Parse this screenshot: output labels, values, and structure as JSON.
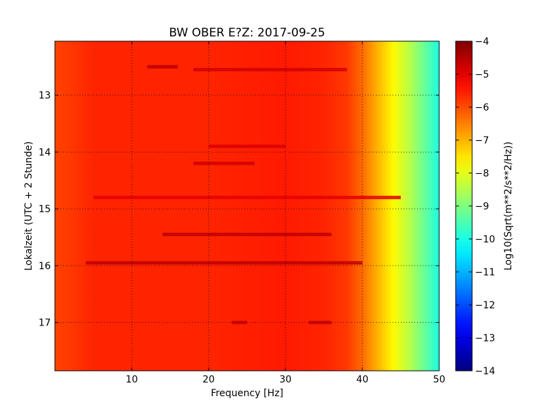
{
  "chart_data": {
    "type": "heatmap",
    "title": "BW OBER E?Z: 2017-09-25",
    "xlabel": "Frequency [Hz]",
    "ylabel": "Lokalzeit (UTC + 2 Stunde)",
    "colorbar_label": "Log10(Sqrt(m**2/s**2/Hz))",
    "colormap": "jet",
    "grid": true,
    "x_range": [
      0,
      50
    ],
    "y_range": [
      12.05,
      17.85
    ],
    "y_inverted": true,
    "x_ticks": [
      10,
      20,
      30,
      40,
      50
    ],
    "x_tick_labels": [
      "10",
      "20",
      "30",
      "40",
      "50"
    ],
    "y_ticks": [
      13,
      14,
      15,
      16,
      17
    ],
    "y_tick_labels": [
      "13",
      "14",
      "15",
      "16",
      "17"
    ],
    "color_range": [
      -14,
      -4
    ],
    "colorbar_ticks": [
      -4,
      -5,
      -6,
      -7,
      -8,
      -9,
      -10,
      -11,
      -12,
      -13,
      -14
    ],
    "colorbar_tick_labels": [
      "−4",
      "−5",
      "−6",
      "−7",
      "−8",
      "−9",
      "−10",
      "−11",
      "−12",
      "−13",
      "−14"
    ],
    "frequency_profile": {
      "freq_hz": [
        0,
        2,
        5,
        10,
        20,
        30,
        35,
        38,
        40,
        42,
        44,
        46,
        48,
        50
      ],
      "log10_psd": [
        -5.9,
        -5.8,
        -5.6,
        -5.6,
        -5.6,
        -5.5,
        -5.6,
        -5.8,
        -6.3,
        -7.0,
        -7.7,
        -8.4,
        -9.2,
        -10.0
      ]
    },
    "bands": [
      {
        "time_h": 12.5,
        "f_start": 12,
        "f_end": 16,
        "log10_psd": -4.6
      },
      {
        "time_h": 12.55,
        "f_start": 18,
        "f_end": 38,
        "log10_psd": -4.8
      },
      {
        "time_h": 13.9,
        "f_start": 20,
        "f_end": 30,
        "log10_psd": -4.9
      },
      {
        "time_h": 14.2,
        "f_start": 18,
        "f_end": 26,
        "log10_psd": -4.8
      },
      {
        "time_h": 14.8,
        "f_start": 5,
        "f_end": 45,
        "log10_psd": -5.0
      },
      {
        "time_h": 15.45,
        "f_start": 14,
        "f_end": 36,
        "log10_psd": -4.6
      },
      {
        "time_h": 15.95,
        "f_start": 4,
        "f_end": 40,
        "log10_psd": -4.6
      },
      {
        "time_h": 17.0,
        "f_start": 23,
        "f_end": 25,
        "log10_psd": -4.7
      },
      {
        "time_h": 17.0,
        "f_start": 33,
        "f_end": 36,
        "log10_psd": -4.7
      }
    ]
  }
}
